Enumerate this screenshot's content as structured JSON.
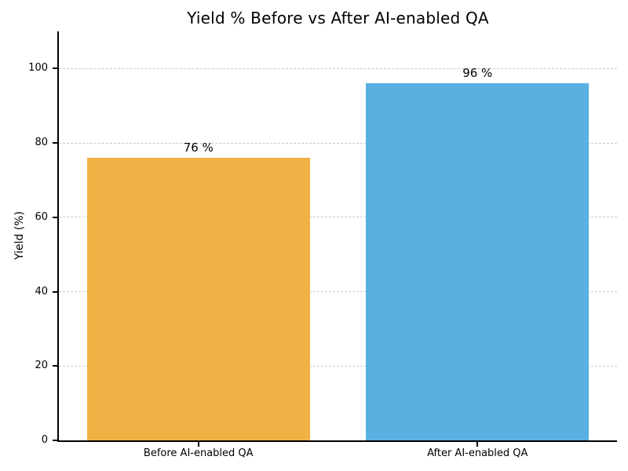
{
  "chart_data": {
    "type": "bar",
    "title": "Yield % Before vs After AI-enabled QA",
    "xlabel": "",
    "ylabel": "Yield (%)",
    "categories": [
      "Before AI-enabled QA",
      "After AI-enabled QA"
    ],
    "values": [
      76,
      96
    ],
    "value_labels": [
      "76 %",
      "96 %"
    ],
    "bar_colors": [
      "#F2B144",
      "#58B1E0"
    ],
    "ylim": [
      0,
      110
    ],
    "yticks": [
      0,
      20,
      40,
      60,
      80,
      100
    ],
    "grid": "horizontal-dashed",
    "grid_color": "#C9C9C9",
    "legend": "none",
    "bar_width_fraction": 0.8,
    "background_color": "#FFFFFF",
    "text_color": "#000000"
  }
}
